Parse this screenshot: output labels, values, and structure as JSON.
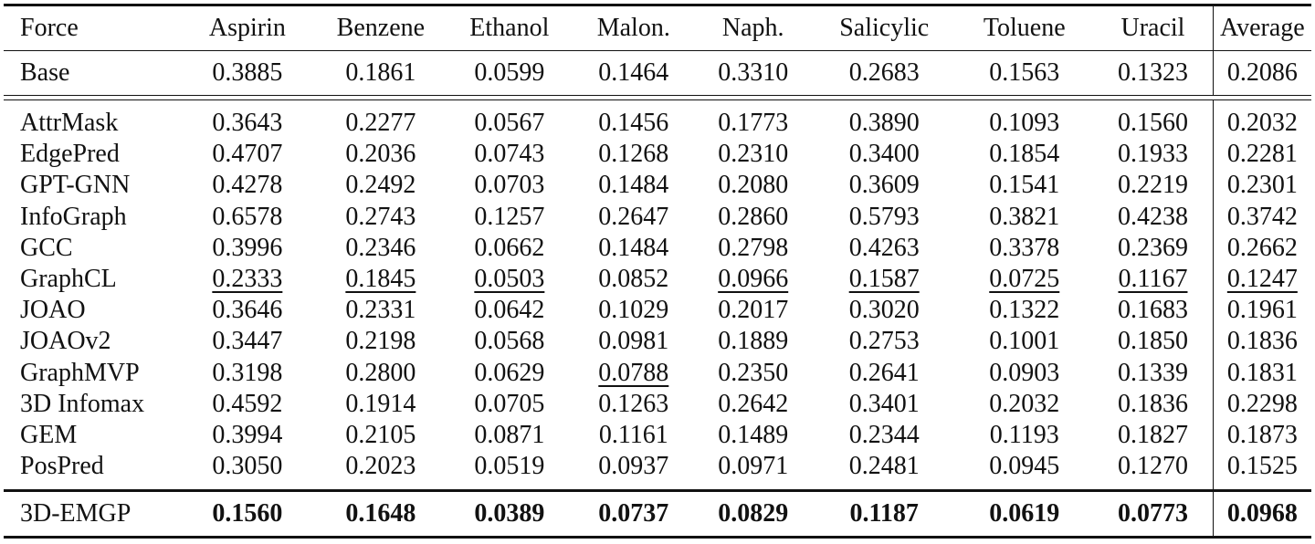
{
  "table": {
    "headers": [
      "Force",
      "Aspirin",
      "Benzene",
      "Ethanol",
      "Malon.",
      "Naph.",
      "Salicylic",
      "Toluene",
      "Uracil",
      "Average"
    ],
    "base_row": {
      "label": "Base",
      "values": [
        "0.3885",
        "0.1861",
        "0.0599",
        "0.1464",
        "0.3310",
        "0.2683",
        "0.1563",
        "0.1323",
        "0.2086"
      ]
    },
    "rows": [
      {
        "label": "AttrMask",
        "values": [
          "0.3643",
          "0.2277",
          "0.0567",
          "0.1456",
          "0.1773",
          "0.3890",
          "0.1093",
          "0.1560",
          "0.2032"
        ]
      },
      {
        "label": "EdgePred",
        "values": [
          "0.4707",
          "0.2036",
          "0.0743",
          "0.1268",
          "0.2310",
          "0.3400",
          "0.1854",
          "0.1933",
          "0.2281"
        ]
      },
      {
        "label": "GPT-GNN",
        "values": [
          "0.4278",
          "0.2492",
          "0.0703",
          "0.1484",
          "0.2080",
          "0.3609",
          "0.1541",
          "0.2219",
          "0.2301"
        ]
      },
      {
        "label": "InfoGraph",
        "values": [
          "0.6578",
          "0.2743",
          "0.1257",
          "0.2647",
          "0.2860",
          "0.5793",
          "0.3821",
          "0.4238",
          "0.3742"
        ]
      },
      {
        "label": "GCC",
        "values": [
          "0.3996",
          "0.2346",
          "0.0662",
          "0.1484",
          "0.2798",
          "0.4263",
          "0.3378",
          "0.2369",
          "0.2662"
        ]
      },
      {
        "label": "GraphCL",
        "values": [
          "0.2333",
          "0.1845",
          "0.0503",
          "0.0852",
          "0.0966",
          "0.1587",
          "0.0725",
          "0.1167",
          "0.1247"
        ]
      },
      {
        "label": "JOAO",
        "values": [
          "0.3646",
          "0.2331",
          "0.0642",
          "0.1029",
          "0.2017",
          "0.3020",
          "0.1322",
          "0.1683",
          "0.1961"
        ]
      },
      {
        "label": "JOAOv2",
        "values": [
          "0.3447",
          "0.2198",
          "0.0568",
          "0.0981",
          "0.1889",
          "0.2753",
          "0.1001",
          "0.1850",
          "0.1836"
        ]
      },
      {
        "label": "GraphMVP",
        "values": [
          "0.3198",
          "0.2800",
          "0.0629",
          "0.0788",
          "0.2350",
          "0.2641",
          "0.0903",
          "0.1339",
          "0.1831"
        ]
      },
      {
        "label": "3D Infomax",
        "values": [
          "0.4592",
          "0.1914",
          "0.0705",
          "0.1263",
          "0.2642",
          "0.3401",
          "0.2032",
          "0.1836",
          "0.2298"
        ]
      },
      {
        "label": "GEM",
        "values": [
          "0.3994",
          "0.2105",
          "0.0871",
          "0.1161",
          "0.1489",
          "0.2344",
          "0.1193",
          "0.1827",
          "0.1873"
        ]
      },
      {
        "label": "PosPred",
        "values": [
          "0.3050",
          "0.2023",
          "0.0519",
          "0.0937",
          "0.0971",
          "0.2481",
          "0.0945",
          "0.1270",
          "0.1525"
        ]
      }
    ],
    "final_row": {
      "label": "3D-EMGP",
      "values": [
        "0.1560",
        "0.1648",
        "0.0389",
        "0.0737",
        "0.0829",
        "0.1187",
        "0.0619",
        "0.0773",
        "0.0968"
      ]
    }
  }
}
